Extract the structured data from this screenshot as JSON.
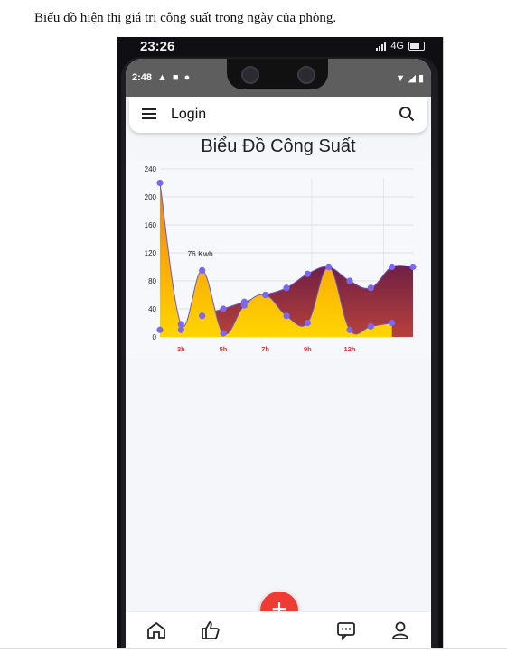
{
  "caption": "Biểu đồ hiện thị giá trị công suất trong ngày của phòng.",
  "outer_status": {
    "time": "23:26",
    "network": "4G"
  },
  "inner_status": {
    "time": "2:48"
  },
  "topbar": {
    "title": "Login"
  },
  "chart_title": "Biểu Đồ Công Suất",
  "chart_data": {
    "type": "area",
    "title": "Biểu Đồ Công Suất",
    "ylim": [
      0,
      240
    ],
    "yticks": [
      0,
      40,
      80,
      120,
      160,
      200,
      240
    ],
    "xlim": [
      0,
      12
    ],
    "xtick_labels": [
      {
        "x": 1,
        "label": "3h"
      },
      {
        "x": 3,
        "label": "5h"
      },
      {
        "x": 5,
        "label": "7h"
      },
      {
        "x": 7,
        "label": "9h"
      },
      {
        "x": 9,
        "label": "12h"
      }
    ],
    "annotation": {
      "text": "76 Kwh",
      "y": 120
    },
    "series": [
      {
        "color_top": "#f57d12",
        "color_bottom": "#ffd500",
        "points": [
          [
            0,
            220
          ],
          [
            1,
            18
          ],
          [
            2,
            95
          ],
          [
            3,
            5
          ],
          [
            4,
            45
          ],
          [
            5,
            60
          ],
          [
            6,
            30
          ],
          [
            7,
            20
          ],
          [
            8,
            100
          ],
          [
            9,
            10
          ],
          [
            10,
            15
          ],
          [
            11,
            20
          ]
        ]
      },
      {
        "color_top": "#7a2342",
        "color_bottom": "#b13a3d",
        "points": [
          [
            0,
            10
          ],
          [
            1,
            10
          ],
          [
            2,
            30
          ],
          [
            3,
            40
          ],
          [
            4,
            50
          ],
          [
            5,
            60
          ],
          [
            6,
            70
          ],
          [
            7,
            90
          ],
          [
            8,
            100
          ],
          [
            9,
            80
          ],
          [
            10,
            70
          ],
          [
            11,
            100
          ],
          [
            12,
            100
          ]
        ]
      }
    ]
  }
}
